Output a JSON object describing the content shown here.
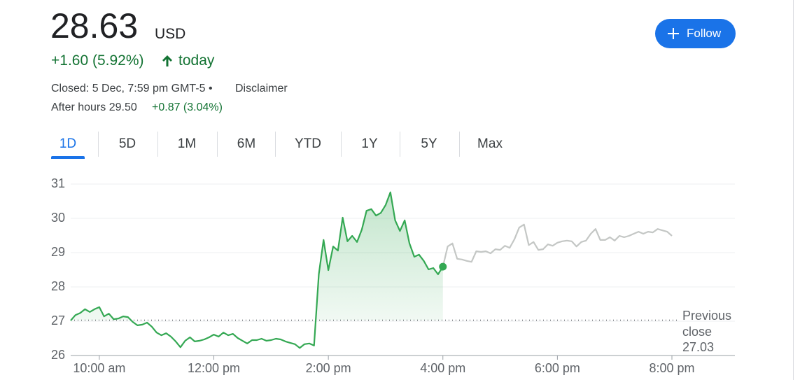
{
  "header": {
    "price": "28.63",
    "currency": "USD",
    "change": "+1.60 (5.92%)",
    "change_suffix": "today",
    "closed": "Closed: 5 Dec, 7:59 pm GMT-5 •",
    "disclaimer": "Disclaimer",
    "after_hours_label": "After hours 29.50",
    "after_hours_change": "+0.87 (3.04%)",
    "follow": "Follow"
  },
  "tabs": [
    "1D",
    "5D",
    "1M",
    "6M",
    "YTD",
    "1Y",
    "5Y",
    "Max"
  ],
  "chart_data": {
    "type": "line",
    "xlim": [
      570,
      1266
    ],
    "ylim": [
      26,
      31
    ],
    "xticks": [
      {
        "value": 600,
        "label": "10:00 am"
      },
      {
        "value": 720,
        "label": "12:00 pm"
      },
      {
        "value": 840,
        "label": "2:00 pm"
      },
      {
        "value": 960,
        "label": "4:00 pm"
      },
      {
        "value": 1080,
        "label": "6:00 pm"
      },
      {
        "value": 1200,
        "label": "8:00 pm"
      }
    ],
    "yticks": [
      26,
      27,
      28,
      29,
      30,
      31
    ],
    "grid": true,
    "previous_close_label": "Previous close",
    "previous_close": 27.03,
    "series": [
      {
        "color": "#34a853",
        "x": [
          570,
          575,
          580,
          585,
          590,
          595,
          600,
          605,
          610,
          615,
          620,
          625,
          630,
          635,
          640,
          645,
          650,
          655,
          660,
          665,
          670,
          675,
          680,
          685,
          690,
          695,
          700,
          705,
          710,
          715,
          720,
          725,
          730,
          735,
          740,
          745,
          750,
          755,
          760,
          765,
          770,
          775,
          780,
          785,
          790,
          795,
          800,
          805,
          810,
          815,
          820,
          825,
          830,
          835,
          840,
          845,
          850,
          855,
          860,
          865,
          870,
          875,
          880,
          885,
          890,
          895,
          900,
          905,
          910,
          915,
          920,
          925,
          930,
          935,
          940,
          945,
          950,
          955,
          960
        ],
        "values": [
          27.02,
          27.18,
          27.24,
          27.35,
          27.27,
          27.35,
          27.41,
          27.14,
          27.22,
          27.06,
          27.08,
          27.14,
          27.12,
          26.98,
          26.88,
          26.9,
          26.96,
          26.84,
          26.67,
          26.59,
          26.65,
          26.55,
          26.41,
          26.24,
          26.43,
          26.53,
          26.41,
          26.43,
          26.47,
          26.53,
          26.61,
          26.55,
          26.67,
          26.59,
          26.63,
          26.51,
          26.43,
          26.35,
          26.45,
          26.45,
          26.49,
          26.43,
          26.45,
          26.49,
          26.47,
          26.41,
          26.37,
          26.33,
          26.22,
          26.33,
          26.35,
          26.29,
          28.37,
          29.37,
          28.49,
          29.18,
          29.06,
          30.02,
          29.33,
          29.49,
          29.31,
          29.67,
          30.22,
          30.27,
          30.08,
          30.16,
          30.39,
          30.76,
          29.94,
          29.63,
          29.94,
          29.27,
          28.88,
          28.94,
          28.76,
          28.51,
          28.55,
          28.37,
          28.59
        ]
      },
      {
        "color": "#c4c7c5",
        "x": [
          960,
          965,
          970,
          975,
          980,
          985,
          990,
          995,
          1000,
          1005,
          1010,
          1015,
          1020,
          1025,
          1030,
          1035,
          1040,
          1045,
          1050,
          1055,
          1060,
          1065,
          1070,
          1075,
          1080,
          1085,
          1090,
          1095,
          1100,
          1105,
          1110,
          1115,
          1120,
          1125,
          1130,
          1135,
          1140,
          1145,
          1150,
          1155,
          1160,
          1165,
          1170,
          1175,
          1180,
          1185,
          1190,
          1195,
          1200
        ],
        "values": [
          28.59,
          29.18,
          29.27,
          28.82,
          28.8,
          28.76,
          28.73,
          29.04,
          29.02,
          29.04,
          28.98,
          29.1,
          29.08,
          29.2,
          29.14,
          29.39,
          29.73,
          29.82,
          29.22,
          29.31,
          29.08,
          29.1,
          29.24,
          29.2,
          29.29,
          29.33,
          29.35,
          29.33,
          29.18,
          29.31,
          29.35,
          29.55,
          29.69,
          29.37,
          29.37,
          29.45,
          29.35,
          29.49,
          29.45,
          29.49,
          29.55,
          29.61,
          29.55,
          29.61,
          29.59,
          29.69,
          29.65,
          29.61,
          29.49
        ]
      }
    ]
  }
}
